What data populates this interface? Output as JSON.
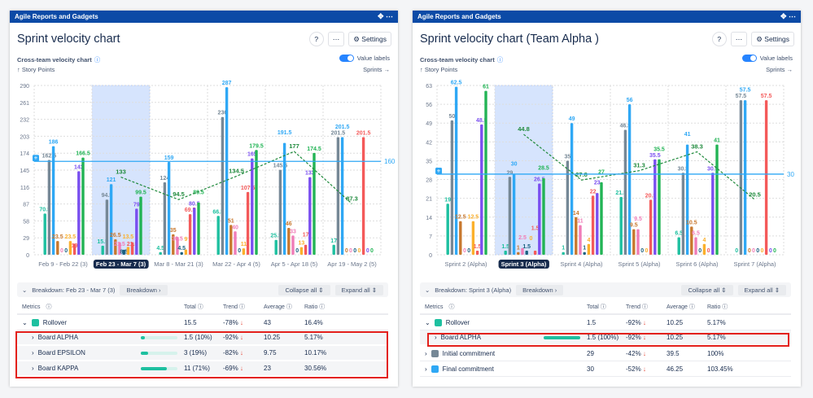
{
  "panels": [
    {
      "header": "Agile Reports and Gadgets",
      "title": "Sprint velocity chart",
      "settings": "Settings",
      "subtitle": "Cross-team velocity chart",
      "value_labels": "Value labels",
      "y_axis": "↑ Story Points",
      "x_axis": "Sprints →",
      "breakdown_title": "Breakdown: Feb 23 - Mar 7 (3)",
      "breakdown_btn": "Breakdown",
      "collapse_all": "Collapse all",
      "expand_all": "Expand all",
      "columns": [
        "Metrics",
        "Total",
        "Trend",
        "Average",
        "Ratio"
      ],
      "rows": [
        {
          "type": "parent",
          "expand": "⌄",
          "color": "#1ec0a0",
          "label": "Rollover",
          "total": "15.5",
          "trend": "-78%",
          "average": "43",
          "ratio": "16.4%"
        },
        {
          "type": "child",
          "label": "Board ALPHA",
          "share": 10,
          "total": "1.5 (10%)",
          "trend": "-92%",
          "average": "10.25",
          "ratio": "5.17%"
        },
        {
          "type": "child",
          "label": "Board EPSILON",
          "share": 19,
          "total": "3 (19%)",
          "trend": "-82%",
          "average": "9.75",
          "ratio": "10.17%"
        },
        {
          "type": "child",
          "label": "Board KAPPA",
          "share": 71,
          "total": "11 (71%)",
          "trend": "-69%",
          "average": "23",
          "ratio": "30.56%"
        }
      ]
    },
    {
      "header": "Agile Reports and Gadgets",
      "title": "Sprint velocity chart (Team Alpha )",
      "settings": "Settings",
      "subtitle": "Cross-team velocity chart",
      "value_labels": "Value labels",
      "y_axis": "↑ Story Points",
      "x_axis": "Sprints →",
      "breakdown_title": "Breakdown: Sprint 3 (Alpha)",
      "breakdown_btn": "Breakdown",
      "collapse_all": "Collapse all",
      "expand_all": "Expand all",
      "columns": [
        "Metrics",
        "Total",
        "Trend",
        "Average",
        "Ratio"
      ],
      "rows": [
        {
          "type": "parent",
          "expand": "⌄",
          "color": "#1ec0a0",
          "label": "Rollover",
          "total": "1.5",
          "trend": "-92%",
          "average": "10.25",
          "ratio": "5.17%"
        },
        {
          "type": "child",
          "label": "Board ALPHA",
          "share": 100,
          "total": "1.5 (100%)",
          "trend": "-92%",
          "average": "10.25",
          "ratio": "5.17%"
        },
        {
          "type": "parent",
          "expand": "›",
          "color": "#768896",
          "label": "Initial commitment",
          "total": "29",
          "trend": "-42%",
          "average": "39.5",
          "ratio": "100%"
        },
        {
          "type": "parent",
          "expand": "›",
          "color": "#2fa8f5",
          "label": "Final commitment",
          "total": "30",
          "trend": "-52%",
          "average": "46.25",
          "ratio": "103.45%"
        }
      ]
    }
  ],
  "chart_data": [
    {
      "type": "bar",
      "series_colors": [
        "#1ec0a0",
        "#768896",
        "#2fa8f5",
        "#c8782e",
        "#f07db8",
        "#1a6080",
        "#fbb02c",
        "#f45a5a",
        "#7a4ff0",
        "#22b455"
      ],
      "categories": [
        "Feb 9 - Feb 22 (3)",
        "Feb 23 - Mar 7 (3)",
        "Mar 8 - Mar 21 (3)",
        "Mar 22 - Apr 4 (5)",
        "Apr 5 - Apr 18 (5)",
        "Apr 19 - May 2 (5)"
      ],
      "selected": 1,
      "yticks": [
        0,
        29,
        58,
        87,
        116,
        145,
        174,
        203,
        232,
        261,
        290
      ],
      "ylim": [
        0,
        290
      ],
      "groups": [
        [
          70.5,
          162.5,
          186,
          23.5,
          0,
          0,
          23.5,
          19,
          143,
          166.5
        ],
        [
          15.5,
          94.5,
          121,
          26.5,
          21.5,
          8.5,
          13.5,
          21.5,
          79,
          99.5
        ],
        [
          4.5,
          124,
          159,
          35,
          30.5,
          4.5,
          9,
          69.5,
          80.5,
          89.5
        ],
        [
          66.5,
          236,
          287,
          51,
          40,
          0,
          11,
          107.5,
          165,
          179.5
        ],
        [
          25.5,
          145.5,
          191.5,
          46,
          33,
          0,
          13,
          17,
          133,
          174.5
        ],
        [
          17,
          201.5,
          201.5,
          0,
          0,
          0,
          0,
          201.5,
          0,
          0
        ]
      ],
      "average_line": [
        null,
        133,
        94.5,
        134.5,
        177,
        87.3
      ],
      "reference": 160
    },
    {
      "type": "bar",
      "series_colors": [
        "#1ec0a0",
        "#768896",
        "#2fa8f5",
        "#c8782e",
        "#f07db8",
        "#1a6080",
        "#fbb02c",
        "#f45a5a",
        "#7a4ff0",
        "#22b455"
      ],
      "categories": [
        "Sprint 2 (Alpha)",
        "Sprint 3 (Alpha)",
        "Sprint 4 (Alpha)",
        "Sprint 5 (Alpha)",
        "Sprint 6 (Alpha)",
        "Sprint 7 (Alpha)"
      ],
      "selected": 1,
      "yticks": [
        0,
        7,
        14,
        21,
        28,
        35,
        42,
        49,
        56,
        63
      ],
      "ylim": [
        0,
        63
      ],
      "groups": [
        [
          19,
          50,
          62.5,
          12.5,
          0,
          0,
          12.5,
          1.5,
          48.5,
          61
        ],
        [
          1.5,
          29,
          30,
          1,
          2.5,
          1.5,
          0,
          1.5,
          26.5,
          28.5
        ],
        [
          1,
          35,
          49,
          14,
          11,
          1,
          4,
          22,
          23,
          27
        ],
        [
          21.5,
          46.5,
          56,
          9.5,
          9.5,
          0,
          0,
          20.5,
          35.5,
          35.5
        ],
        [
          6.5,
          30.5,
          41,
          10.5,
          6.5,
          0,
          4,
          0,
          30.5,
          41
        ],
        [
          0,
          57.5,
          57.5,
          0,
          0,
          0,
          0,
          57.5,
          0,
          0
        ]
      ],
      "average_line": [
        null,
        44.8,
        27.8,
        31.3,
        38.3,
        20.5
      ],
      "reference": 30
    }
  ]
}
